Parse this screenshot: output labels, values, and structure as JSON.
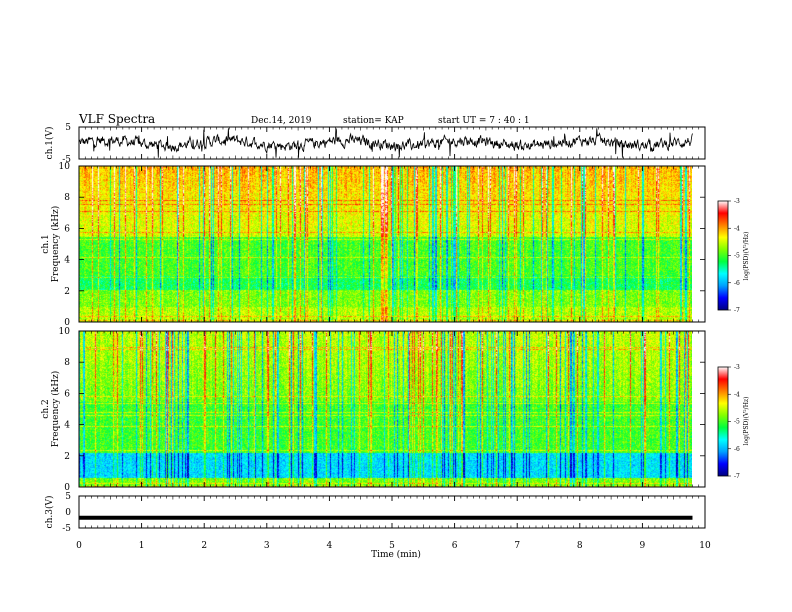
{
  "header": {
    "title": "VLF Spectra",
    "date": "Dec.14, 2019",
    "station": "station= KAP",
    "start": "start  UT  =   7 : 40 : 1"
  },
  "chart_data": [
    {
      "type": "line",
      "name": "ch1-waveform",
      "ylabel": "ch.1(V)",
      "ylim": [
        -5,
        5
      ],
      "yticks": [
        "5",
        "-5"
      ],
      "xlim": [
        0,
        9.8
      ]
    },
    {
      "type": "heatmap",
      "name": "ch1-spectrogram",
      "ylabel_line1": "ch.1",
      "ylabel_line2": "Frequency (kHz)",
      "ylim": [
        0,
        10
      ],
      "yticks": [
        "0",
        "2",
        "4",
        "6",
        "8",
        "10"
      ],
      "xlim": [
        0,
        9.8
      ],
      "colorbar": {
        "label": "log(PSD)(V²/Hz)",
        "range": [
          -7,
          -3
        ],
        "ticks": [
          "-3",
          "-4",
          "-5",
          "-6",
          "-7"
        ],
        "colors": [
          "#000080",
          "#0000ff",
          "#00a0ff",
          "#00ffff",
          "#00ff40",
          "#80ff00",
          "#ffff00",
          "#ff8000",
          "#ff0000",
          "#ffffff"
        ]
      }
    },
    {
      "type": "heatmap",
      "name": "ch2-spectrogram",
      "ylabel_line1": "ch.2",
      "ylabel_line2": "Frequency (kHz)",
      "ylim": [
        0,
        10
      ],
      "yticks": [
        "0",
        "2",
        "4",
        "6",
        "8",
        "10"
      ],
      "xlim": [
        0,
        9.8
      ],
      "colorbar": {
        "label": "log(PSD)(V²/Hz)",
        "range": [
          -7,
          -3
        ],
        "ticks": [
          "-3",
          "-4",
          "-5",
          "-6",
          "-7"
        ],
        "colors": [
          "#000080",
          "#0000ff",
          "#00a0ff",
          "#00ffff",
          "#00ff40",
          "#80ff00",
          "#ffff00",
          "#ff8000",
          "#ff0000",
          "#ffffff"
        ]
      }
    },
    {
      "type": "line",
      "name": "ch3-waveform",
      "ylabel": "ch.3(V)",
      "ylim": [
        -5,
        5
      ],
      "yticks": [
        "5",
        "0",
        "-5"
      ],
      "x": [
        0,
        9.8
      ],
      "y": [
        -1.8,
        -1.8
      ],
      "xlim": [
        0,
        10
      ],
      "xticks": [
        "0",
        "1",
        "2",
        "3",
        "4",
        "5",
        "6",
        "7",
        "8",
        "9",
        "10"
      ],
      "xlabel": "Time (min)"
    }
  ]
}
